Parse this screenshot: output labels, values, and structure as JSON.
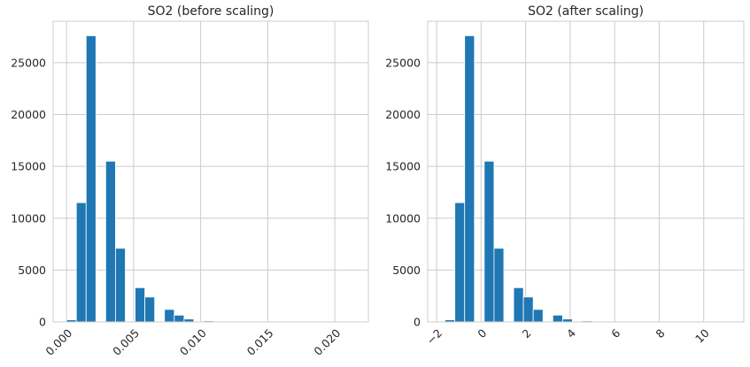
{
  "chart_data": [
    {
      "type": "bar",
      "title": "SO2 (before scaling)",
      "xlabel": "",
      "ylabel": "",
      "grid": true,
      "xlim": [
        -0.001,
        0.0225
      ],
      "ylim": [
        0,
        29000
      ],
      "xticks": [
        0.0,
        0.005,
        0.01,
        0.015,
        0.02
      ],
      "xtick_labels": [
        "0.000",
        "0.005",
        "0.010",
        "0.015",
        "0.020"
      ],
      "yticks": [
        0,
        5000,
        10000,
        15000,
        20000,
        25000
      ],
      "ytick_labels": [
        "0",
        "5000",
        "10000",
        "15000",
        "20000",
        "25000"
      ],
      "bin_edges": [
        0.0,
        0.00073,
        0.00146,
        0.00219,
        0.00292,
        0.00365,
        0.00438,
        0.00511,
        0.00584,
        0.00657,
        0.0073,
        0.00803,
        0.00876,
        0.00949,
        0.01022,
        0.01095,
        0.01168,
        0.01241,
        0.01314,
        0.01387,
        0.0146,
        0.01533,
        0.01606,
        0.01679,
        0.01752,
        0.01825,
        0.01898,
        0.01971,
        0.02044,
        0.02117,
        0.0219
      ],
      "values": [
        200,
        11500,
        27600,
        0,
        15500,
        7100,
        0,
        3300,
        2400,
        0,
        1200,
        650,
        280,
        0,
        100,
        0,
        50,
        0,
        20,
        0,
        15,
        0,
        10,
        0,
        8,
        5,
        0,
        0,
        0,
        5
      ]
    },
    {
      "type": "bar",
      "title": "SO2 (after scaling)",
      "xlabel": "",
      "ylabel": "",
      "grid": true,
      "xlim": [
        -2.4,
        11.8
      ],
      "ylim": [
        0,
        29000
      ],
      "xticks": [
        -2,
        0,
        2,
        4,
        6,
        8,
        10
      ],
      "xtick_labels": [
        "−2",
        "0",
        "2",
        "4",
        "6",
        "8",
        "10"
      ],
      "yticks": [
        0,
        5000,
        10000,
        15000,
        20000,
        25000
      ],
      "ytick_labels": [
        "0",
        "5000",
        "10000",
        "15000",
        "20000",
        "25000"
      ],
      "bin_edges": [
        -1.62,
        -1.18,
        -0.74,
        -0.3,
        0.14,
        0.58,
        1.02,
        1.46,
        1.9,
        2.34,
        2.78,
        3.22,
        3.66,
        4.1,
        4.54,
        4.98,
        5.42,
        5.86,
        6.3,
        6.74,
        7.18,
        7.62,
        8.06,
        8.5,
        8.94,
        9.38,
        9.82,
        10.26,
        10.7,
        11.14,
        11.58
      ],
      "values": [
        200,
        11500,
        27600,
        0,
        15500,
        7100,
        0,
        3300,
        2400,
        1200,
        0,
        650,
        280,
        0,
        100,
        50,
        20,
        15,
        10,
        8,
        5,
        5,
        0,
        0,
        5,
        5,
        0,
        5,
        0,
        0
      ]
    }
  ]
}
